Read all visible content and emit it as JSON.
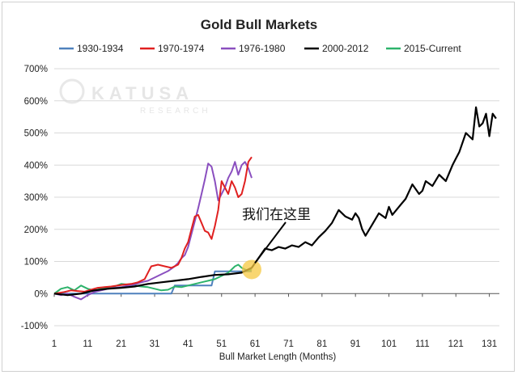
{
  "chart_data": {
    "type": "line",
    "title": "Gold Bull Markets",
    "xlabel": "Bull Market Length (Months)",
    "ylabel": "",
    "xlim": [
      1,
      134
    ],
    "ylim": [
      -100,
      700
    ],
    "x_ticks": [
      1,
      11,
      21,
      31,
      41,
      51,
      61,
      71,
      81,
      91,
      101,
      111,
      121,
      131
    ],
    "y_ticks": [
      -100,
      0,
      100,
      200,
      300,
      400,
      500,
      600,
      700
    ],
    "y_tick_labels": [
      "-100%",
      "0%",
      "100%",
      "200%",
      "300%",
      "400%",
      "500%",
      "600%",
      "700%"
    ],
    "grid": "horizontal",
    "legend_position": "top",
    "watermark": {
      "brand": "KATUSA",
      "sub": "RESEARCH"
    },
    "annotation": {
      "text": "我们在这里",
      "point": [
        60,
        75
      ],
      "highlight_color": "#f5c842"
    },
    "series": [
      {
        "name": "1930-1934",
        "color": "#4f81bd",
        "x": [
          1,
          36,
          37,
          48,
          49,
          60
        ],
        "y": [
          0,
          0,
          25,
          25,
          69,
          69
        ]
      },
      {
        "name": "1970-1974",
        "color": "#e02020",
        "x": [
          1,
          4,
          6,
          8,
          10,
          12,
          14,
          16,
          18,
          20,
          22,
          24,
          26,
          28,
          29,
          30,
          32,
          34,
          36,
          38,
          39,
          40,
          41,
          42,
          43,
          44,
          45,
          46,
          47,
          48,
          49,
          50,
          51,
          52,
          53,
          54,
          55,
          56,
          57,
          58,
          59,
          60
        ],
        "y": [
          0,
          5,
          10,
          8,
          6,
          12,
          18,
          20,
          22,
          25,
          28,
          30,
          35,
          45,
          65,
          85,
          90,
          85,
          80,
          90,
          110,
          140,
          160,
          200,
          240,
          245,
          220,
          195,
          190,
          170,
          210,
          260,
          350,
          330,
          310,
          350,
          330,
          300,
          310,
          350,
          410,
          425
        ]
      },
      {
        "name": "1976-1980",
        "color": "#8a4fbf",
        "x": [
          1,
          3,
          5,
          7,
          9,
          11,
          13,
          15,
          17,
          19,
          21,
          23,
          25,
          27,
          29,
          31,
          33,
          35,
          37,
          38,
          39,
          40,
          41,
          42,
          43,
          44,
          45,
          46,
          47,
          48,
          49,
          50,
          51,
          52,
          53,
          54,
          55,
          56,
          57,
          58,
          59,
          60
        ],
        "y": [
          0,
          -5,
          0,
          -10,
          -18,
          -5,
          5,
          10,
          15,
          18,
          20,
          25,
          28,
          35,
          40,
          50,
          60,
          70,
          85,
          95,
          110,
          120,
          145,
          185,
          225,
          265,
          310,
          355,
          405,
          395,
          350,
          290,
          310,
          330,
          360,
          380,
          410,
          370,
          400,
          410,
          390,
          360
        ]
      },
      {
        "name": "2000-2012",
        "color": "#000000",
        "x": [
          1,
          5,
          9,
          13,
          17,
          21,
          25,
          29,
          33,
          37,
          41,
          45,
          49,
          53,
          57,
          60,
          62,
          63,
          64,
          66,
          68,
          70,
          72,
          74,
          76,
          78,
          80,
          82,
          84,
          86,
          88,
          90,
          91,
          92,
          93,
          94,
          96,
          98,
          100,
          101,
          102,
          104,
          106,
          108,
          110,
          111,
          112,
          114,
          116,
          118,
          120,
          121,
          122,
          124,
          126,
          127,
          128,
          129,
          130,
          131,
          132,
          133
        ],
        "y": [
          0,
          -5,
          0,
          10,
          15,
          18,
          22,
          30,
          35,
          40,
          45,
          52,
          58,
          60,
          65,
          80,
          110,
          125,
          140,
          135,
          145,
          140,
          150,
          145,
          160,
          150,
          175,
          195,
          220,
          260,
          240,
          230,
          250,
          235,
          200,
          180,
          215,
          250,
          235,
          270,
          245,
          270,
          295,
          340,
          310,
          320,
          350,
          335,
          370,
          350,
          400,
          420,
          440,
          500,
          480,
          580,
          520,
          530,
          560,
          490,
          560,
          545
        ]
      },
      {
        "name": "2015-Current",
        "color": "#2db36b",
        "x": [
          1,
          3,
          5,
          7,
          9,
          11,
          13,
          15,
          17,
          19,
          21,
          23,
          25,
          27,
          29,
          31,
          33,
          35,
          37,
          39,
          41,
          43,
          45,
          47,
          49,
          51,
          53,
          55,
          56,
          57,
          58,
          59,
          60
        ],
        "y": [
          0,
          15,
          20,
          10,
          25,
          15,
          10,
          15,
          18,
          22,
          30,
          28,
          25,
          22,
          20,
          15,
          10,
          12,
          22,
          20,
          25,
          30,
          35,
          40,
          45,
          55,
          65,
          85,
          90,
          80,
          75,
          70,
          75
        ]
      }
    ]
  }
}
